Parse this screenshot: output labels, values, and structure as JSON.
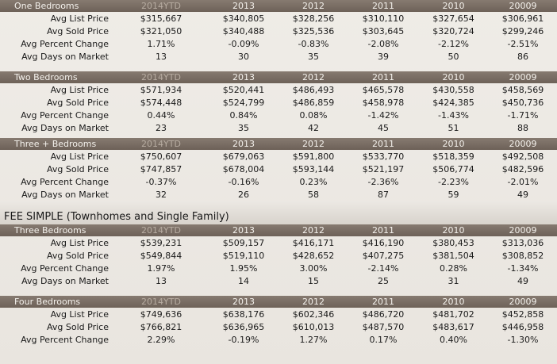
{
  "years": [
    "2014YTD",
    "2013",
    "2012",
    "2011",
    "2010",
    "20009"
  ],
  "sections": [
    {
      "title": "One Bedrooms",
      "rows": [
        {
          "label": "Avg List Price",
          "values": [
            "$315,667",
            "$340,805",
            "$328,256",
            "$310,110",
            "$327,654",
            "$306,961"
          ]
        },
        {
          "label": "Avg Sold Price",
          "values": [
            "$321,050",
            "$340,488",
            "$325,536",
            "$303,645",
            "$320,724",
            "$299,246"
          ]
        },
        {
          "label": "Avg Percent Change",
          "values": [
            "1.71%",
            "-0.09%",
            "-0.83%",
            "-2.08%",
            "-2.12%",
            "-2.51%"
          ]
        },
        {
          "label": "Avg Days on Market",
          "values": [
            "13",
            "30",
            "35",
            "39",
            "50",
            "86"
          ]
        }
      ]
    },
    {
      "title": "Two Bedrooms",
      "rows": [
        {
          "label": "Avg List Price",
          "values": [
            "$571,934",
            "$520,441",
            "$486,493",
            "$465,578",
            "$430,558",
            "$458,569"
          ]
        },
        {
          "label": "Avg Sold Price",
          "values": [
            "$574,448",
            "$524,799",
            "$486,859",
            "$458,978",
            "$424,385",
            "$450,736"
          ]
        },
        {
          "label": "Avg Percent Change",
          "values": [
            "0.44%",
            "0.84%",
            "0.08%",
            "-1.42%",
            "-1.43%",
            "-1.71%"
          ]
        },
        {
          "label": "Avg Days on Market",
          "values": [
            "23",
            "35",
            "42",
            "45",
            "51",
            "88"
          ]
        }
      ]
    },
    {
      "title": "Three + Bedrooms",
      "rows": [
        {
          "label": "Avg List Price",
          "values": [
            "$750,607",
            "$679,063",
            "$591,800",
            "$533,770",
            "$518,359",
            "$492,508"
          ]
        },
        {
          "label": "Avg Sold Price",
          "values": [
            "$747,857",
            "$678,004",
            "$593,144",
            "$521,197",
            "$506,774",
            "$482,596"
          ]
        },
        {
          "label": "Avg Percent Change",
          "values": [
            "-0.37%",
            "-0.16%",
            "0.23%",
            "-2.36%",
            "-2.23%",
            "-2.01%"
          ]
        },
        {
          "label": "Avg Days on Market",
          "values": [
            "32",
            "26",
            "58",
            "87",
            "59",
            "49"
          ]
        }
      ]
    }
  ],
  "fee_simple_title": "FEE SIMPLE (Townhomes and Single Family)",
  "fee_sections": [
    {
      "title": "Three Bedrooms",
      "rows": [
        {
          "label": "Avg List Price",
          "values": [
            "$539,231",
            "$509,157",
            "$416,171",
            "$416,190",
            "$380,453",
            "$313,036"
          ]
        },
        {
          "label": "Avg Sold Price",
          "values": [
            "$549,844",
            "$519,110",
            "$428,652",
            "$407,275",
            "$381,504",
            "$308,852"
          ]
        },
        {
          "label": "Avg Percent Change",
          "values": [
            "1.97%",
            "1.95%",
            "3.00%",
            "-2.14%",
            "0.28%",
            "-1.34%"
          ]
        },
        {
          "label": "Avg Days on Market",
          "values": [
            "13",
            "14",
            "15",
            "25",
            "31",
            "49"
          ]
        }
      ]
    },
    {
      "title": "Four Bedrooms",
      "rows": [
        {
          "label": "Avg List Price",
          "values": [
            "$749,636",
            "$638,176",
            "$602,346",
            "$486,720",
            "$481,702",
            "$452,858"
          ]
        },
        {
          "label": "Avg Sold Price",
          "values": [
            "$766,821",
            "$636,965",
            "$610,013",
            "$487,570",
            "$483,617",
            "$446,958"
          ]
        },
        {
          "label": "Avg Percent Change",
          "values": [
            "2.29%",
            "-0.19%",
            "1.27%",
            "0.17%",
            "0.40%",
            "-1.30%"
          ]
        }
      ]
    }
  ]
}
